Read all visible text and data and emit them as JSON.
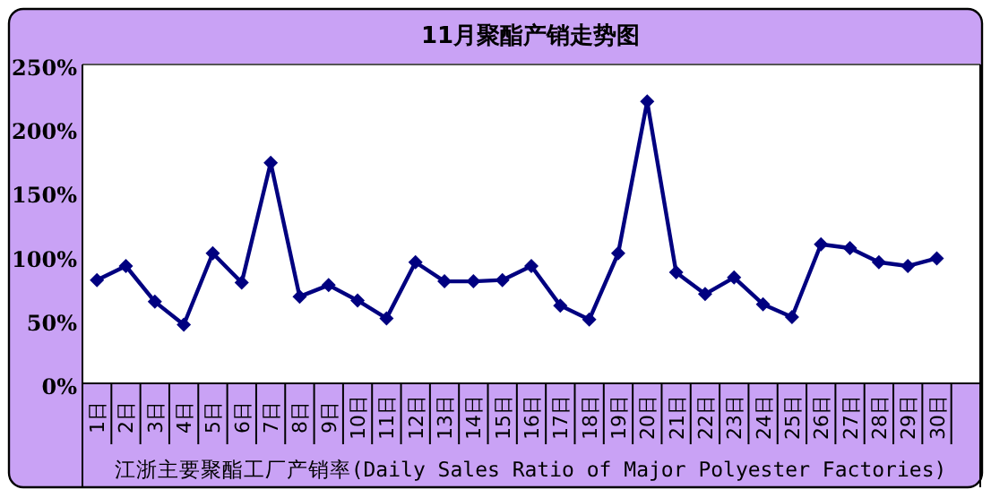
{
  "chart_data": {
    "type": "line",
    "title": "11月聚酯产销走势图",
    "xlabel": "江浙主要聚酯工厂产销率(Daily Sales Ratio of Major Polyester Factories)",
    "categories": [
      "1日",
      "2日",
      "3日",
      "4日",
      "5日",
      "6日",
      "7日",
      "8日",
      "9日",
      "10日",
      "11日",
      "12日",
      "13日",
      "14日",
      "15日",
      "16日",
      "17日",
      "18日",
      "19日",
      "20日",
      "21日",
      "22日",
      "23日",
      "24日",
      "25日",
      "26日",
      "27日",
      "28日",
      "29日",
      "30日",
      null
    ],
    "series": [
      {
        "color": "#000080",
        "values": [
          81,
          92,
          64,
          46,
          102,
          79,
          173,
          68,
          77,
          65,
          51,
          95,
          80,
          80,
          81,
          92,
          61,
          50,
          102,
          221,
          87,
          70,
          83,
          62,
          52,
          109,
          106,
          95,
          92,
          98,
          null
        ]
      }
    ],
    "ylim": [
      0,
      250
    ],
    "yticks": [
      {
        "value": 0,
        "label": "0%"
      },
      {
        "value": 50,
        "label": "50%"
      },
      {
        "value": 100,
        "label": "100%"
      },
      {
        "value": 150,
        "label": "150%"
      },
      {
        "value": 200,
        "label": "200%"
      },
      {
        "value": 250,
        "label": "250%"
      }
    ],
    "marker": "diamond",
    "line_style": "solid"
  }
}
